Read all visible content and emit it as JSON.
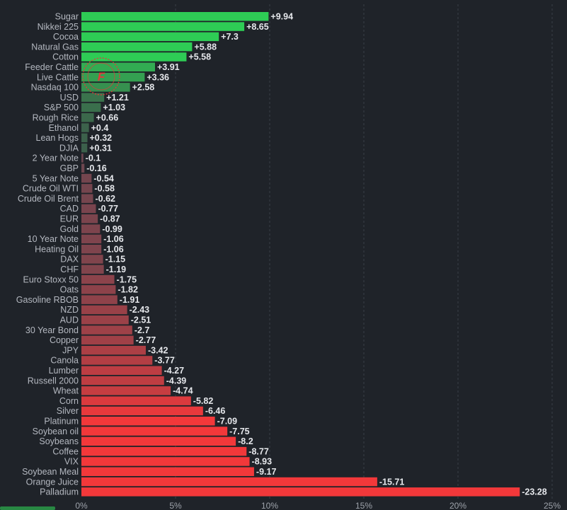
{
  "chart_data": {
    "type": "bar",
    "orientation": "horizontal",
    "categories": [
      "Sugar",
      "Nikkei 225",
      "Cocoa",
      "Natural Gas",
      "Cotton",
      "Feeder Cattle",
      "Live Cattle",
      "Nasdaq 100",
      "USD",
      "S&P 500",
      "Rough Rice",
      "Ethanol",
      "Lean Hogs",
      "DJIA",
      "2 Year Note",
      "GBP",
      "5 Year Note",
      "Crude Oil WTI",
      "Crude Oil Brent",
      "CAD",
      "EUR",
      "Gold",
      "10 Year Note",
      "Heating Oil",
      "DAX",
      "CHF",
      "Euro Stoxx 50",
      "Oats",
      "Gasoline RBOB",
      "NZD",
      "AUD",
      "30 Year Bond",
      "Copper",
      "JPY",
      "Canola",
      "Lumber",
      "Russell 2000",
      "Wheat",
      "Corn",
      "Silver",
      "Platinum",
      "Soybean oil",
      "Soybeans",
      "Coffee",
      "VIX",
      "Soybean Meal",
      "Orange Juice",
      "Palladium"
    ],
    "values": [
      9.94,
      8.65,
      7.3,
      5.88,
      5.58,
      3.91,
      3.36,
      2.58,
      1.21,
      1.03,
      0.66,
      0.4,
      0.32,
      0.31,
      -0.1,
      -0.16,
      -0.54,
      -0.58,
      -0.62,
      -0.77,
      -0.87,
      -0.99,
      -1.06,
      -1.06,
      -1.15,
      -1.19,
      -1.75,
      -1.82,
      -1.91,
      -2.43,
      -2.51,
      -2.7,
      -2.77,
      -3.42,
      -3.77,
      -4.27,
      -4.39,
      -4.74,
      -5.82,
      -6.46,
      -7.09,
      -7.75,
      -8.2,
      -8.77,
      -8.93,
      -9.17,
      -15.71,
      -23.28
    ],
    "value_labels": [
      "+9.94",
      "+8.65",
      "+7.3",
      "+5.88",
      "+5.58",
      "+3.91",
      "+3.36",
      "+2.58",
      "+1.21",
      "+1.03",
      "+0.66",
      "+0.4",
      "+0.32",
      "+0.31",
      "-0.1",
      "-0.16",
      "-0.54",
      "-0.58",
      "-0.62",
      "-0.77",
      "-0.87",
      "-0.99",
      "-1.06",
      "-1.06",
      "-1.15",
      "-1.19",
      "-1.75",
      "-1.82",
      "-1.91",
      "-2.43",
      "-2.51",
      "-2.7",
      "-2.77",
      "-3.42",
      "-3.77",
      "-4.27",
      "-4.39",
      "-4.74",
      "-5.82",
      "-6.46",
      "-7.09",
      "-7.75",
      "-8.2",
      "-8.77",
      "-8.93",
      "-9.17",
      "-15.71",
      "-23.28"
    ],
    "bar_length": "absolute value",
    "x_ticks": [
      0,
      5,
      10,
      15,
      20,
      25
    ],
    "x_tick_labels": [
      "0%",
      "5%",
      "10%",
      "15%",
      "20%",
      "25%"
    ],
    "xlim": [
      0,
      25
    ],
    "grid": "vertical dashed",
    "title": "",
    "xlabel": "",
    "ylabel": "",
    "colors": {
      "background": "#1f2329",
      "positive_strong": "#2ecc55",
      "positive_weak": "#3d5a4a",
      "negative_weak": "#6a4650",
      "negative_strong": "#f2383a"
    }
  },
  "watermark": {
    "logo_letter": "F"
  }
}
